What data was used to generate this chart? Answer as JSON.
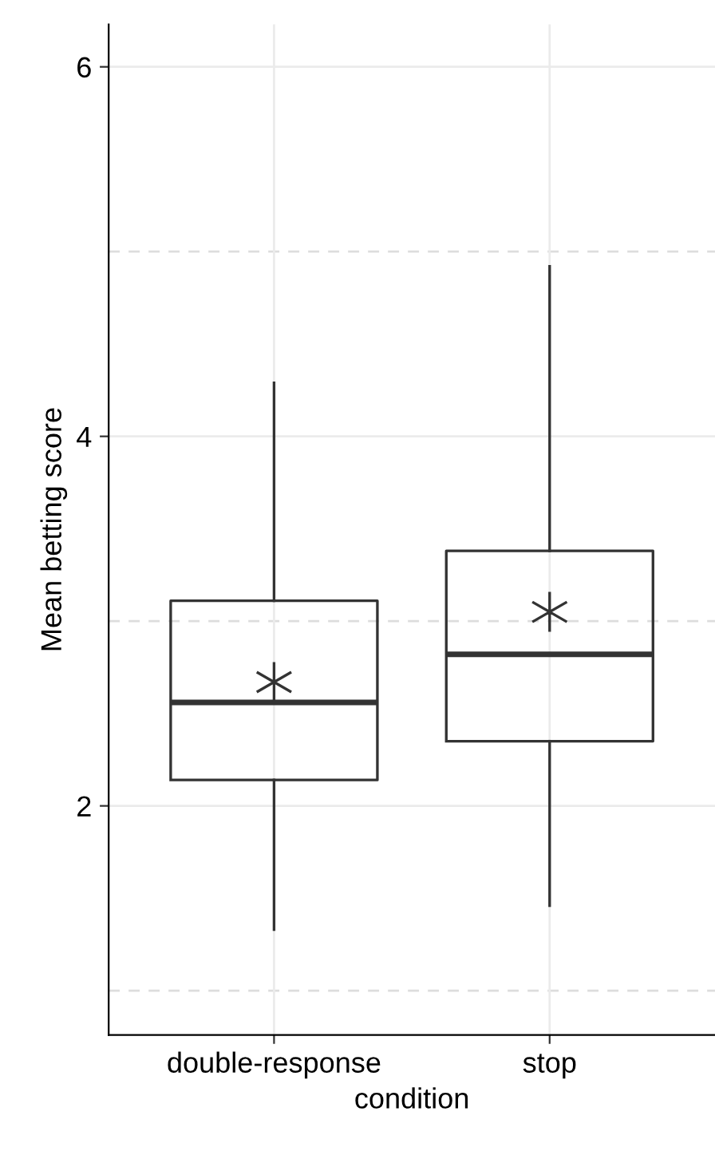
{
  "chart_data": {
    "type": "box",
    "xlabel": "condition",
    "ylabel": "Mean betting score",
    "categories": [
      "double-response",
      "stop"
    ],
    "boxes": [
      {
        "low": 1.33,
        "q1": 2.14,
        "median": 2.56,
        "q3": 3.11,
        "high": 4.29,
        "mean": 2.67
      },
      {
        "low": 1.46,
        "q1": 2.35,
        "median": 2.82,
        "q3": 3.38,
        "high": 4.92,
        "mean": 3.05
      }
    ],
    "ylim": [
      0.76,
      6.23
    ],
    "yticks": [
      2,
      4,
      6
    ],
    "grid": true,
    "marker": "star"
  }
}
